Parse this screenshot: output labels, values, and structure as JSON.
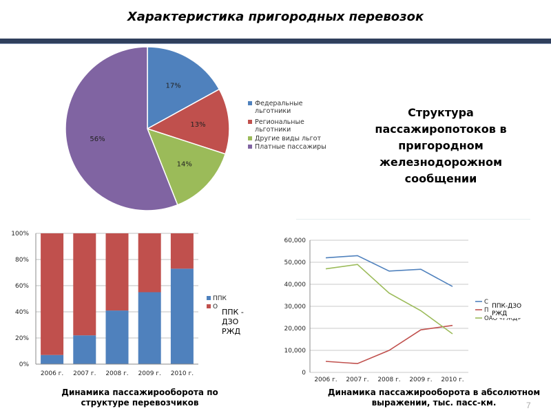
{
  "title": "Характеристика пригородных перевозок",
  "side_title": "Структура пассажиропотоков в пригородном железнодорожном сообщении",
  "caption_bars": "Динамика пассажирооборота по структуре перевозчиков",
  "caption_lines": "Динамика пассажирооборота в абсолютном выражении, тыс. пасс-км.",
  "page_number": "7",
  "note_bars": "ППК - ДЗО РЖД",
  "note_lines": "ППК-ДЗО РЖД",
  "chart_data": [
    {
      "type": "pie",
      "slices": [
        {
          "label": "Федеральные льготники",
          "value": 17,
          "value_label": "17%",
          "color": "#4f81bd"
        },
        {
          "label": "Региональные льготники",
          "value": 13,
          "value_label": "13%",
          "color": "#c0504d"
        },
        {
          "label": "Другие виды льгот",
          "value": 14,
          "value_label": "14%",
          "color": "#9bbb59"
        },
        {
          "label": "Платные пассажиры",
          "value": 56,
          "value_label": "56%",
          "color": "#8064a2"
        }
      ],
      "legend_position": "right"
    },
    {
      "type": "bar",
      "stacked": true,
      "categories": [
        "2006 г.",
        "2007 г.",
        "2008 г.",
        "2009 г.",
        "2010 г."
      ],
      "yticks": [
        "0%",
        "20%",
        "40%",
        "60%",
        "80%",
        "100%"
      ],
      "ylim": [
        0,
        100
      ],
      "series": [
        {
          "name": "ППК",
          "values": [
            7,
            22,
            41,
            55,
            73
          ],
          "color": "#4f81bd"
        },
        {
          "name": "О",
          "values": [
            93,
            78,
            59,
            45,
            27
          ],
          "color": "#c0504d"
        }
      ],
      "legend_position": "right"
    },
    {
      "type": "line",
      "categories": [
        "2006 г.",
        "2007 г.",
        "2008 г.",
        "2009 г.",
        "2010 г."
      ],
      "yticks": [
        "0",
        "10,000",
        "20,000",
        "30,000",
        "40,000",
        "50,000",
        "60,000"
      ],
      "ylim": [
        0,
        60000
      ],
      "series": [
        {
          "name": "С",
          "values": [
            52000,
            53000,
            46000,
            46800,
            39000
          ],
          "color": "#4f81bd"
        },
        {
          "name": "П",
          "values": [
            5000,
            4000,
            10000,
            19300,
            21300
          ],
          "color": "#c0504d"
        },
        {
          "name": "ОАО «РЖД»",
          "values": [
            47000,
            49000,
            36000,
            28000,
            17500
          ],
          "color": "#9bbb59"
        }
      ],
      "legend_position": "right"
    }
  ]
}
